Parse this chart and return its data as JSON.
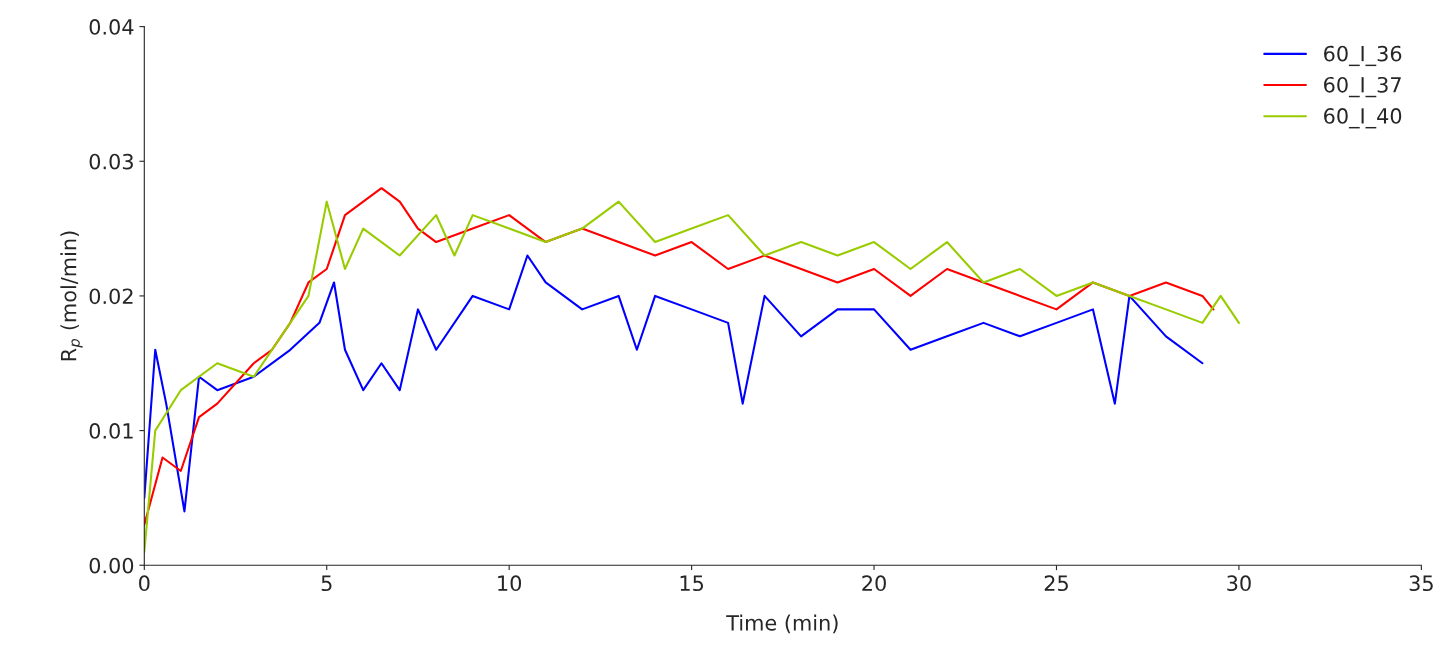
{
  "chart_data": {
    "type": "line",
    "xlabel": "Time (min)",
    "ylabel": "R$_{p}$ (mol/min)",
    "xlim": [
      0,
      35
    ],
    "xticks": [
      0,
      5,
      10,
      15,
      20,
      25,
      30,
      35
    ],
    "ylim": [
      0,
      0.04
    ],
    "yticks": [
      {
        "value": 0,
        "label": "0.00"
      },
      {
        "value": 0.01,
        "label": "0.01"
      },
      {
        "value": 0.02,
        "label": "0.02"
      },
      {
        "value": 0.03,
        "label": "0.03"
      },
      {
        "value": 0.04,
        "label": "0.04"
      }
    ],
    "grid": false,
    "legend": "top right",
    "marker": "none",
    "line_style": "solid",
    "series": [
      {
        "name": "60_I_36",
        "color": "#0000ff",
        "x": [
          0,
          0.3,
          0.6,
          1.1,
          1.5,
          2,
          3,
          4,
          4.8,
          5.2,
          5.5,
          6,
          6.5,
          7,
          7.5,
          8,
          9,
          10,
          10.5,
          11,
          12,
          13,
          13.5,
          14,
          15,
          16,
          16.4,
          17,
          18,
          19,
          20,
          21,
          22,
          23,
          24,
          25,
          26,
          26.6,
          27,
          28,
          29
        ],
        "values": [
          0.005,
          0.016,
          0.012,
          0.004,
          0.014,
          0.013,
          0.014,
          0.016,
          0.018,
          0.021,
          0.016,
          0.013,
          0.015,
          0.013,
          0.019,
          0.016,
          0.02,
          0.019,
          0.023,
          0.021,
          0.019,
          0.02,
          0.016,
          0.02,
          0.019,
          0.018,
          0.012,
          0.02,
          0.017,
          0.019,
          0.019,
          0.016,
          0.017,
          0.018,
          0.017,
          0.018,
          0.019,
          0.012,
          0.02,
          0.017,
          0.015
        ]
      },
      {
        "name": "60_I_37",
        "color": "#ff0000",
        "x": [
          0,
          0.5,
          1,
          1.5,
          2,
          3,
          3.5,
          4,
          4.5,
          5,
          5.5,
          6,
          6.5,
          7,
          7.5,
          8,
          9,
          10,
          11,
          12,
          13,
          14,
          15,
          16,
          17,
          18,
          19,
          20,
          21,
          22,
          23,
          24,
          25,
          26,
          27,
          28,
          29,
          29.3
        ],
        "values": [
          0.003,
          0.008,
          0.007,
          0.011,
          0.012,
          0.015,
          0.016,
          0.018,
          0.021,
          0.022,
          0.026,
          0.027,
          0.028,
          0.027,
          0.025,
          0.024,
          0.025,
          0.026,
          0.024,
          0.025,
          0.024,
          0.023,
          0.024,
          0.022,
          0.023,
          0.022,
          0.021,
          0.022,
          0.02,
          0.022,
          0.021,
          0.02,
          0.019,
          0.021,
          0.02,
          0.021,
          0.02,
          0.019
        ]
      },
      {
        "name": "60_I_40",
        "color": "#99cc00",
        "x": [
          0,
          0.3,
          1,
          2,
          3,
          4,
          4.5,
          5,
          5.5,
          6,
          7,
          8,
          8.5,
          9,
          10,
          11,
          12,
          13,
          14,
          15,
          16,
          17,
          18,
          19,
          20,
          21,
          22,
          23,
          24,
          25,
          26,
          27,
          28,
          29,
          29.5,
          30
        ],
        "values": [
          0.001,
          0.01,
          0.013,
          0.015,
          0.014,
          0.018,
          0.02,
          0.027,
          0.022,
          0.025,
          0.023,
          0.026,
          0.023,
          0.026,
          0.025,
          0.024,
          0.025,
          0.027,
          0.024,
          0.025,
          0.026,
          0.023,
          0.024,
          0.023,
          0.024,
          0.022,
          0.024,
          0.021,
          0.022,
          0.02,
          0.021,
          0.02,
          0.019,
          0.018,
          0.02,
          0.018
        ]
      }
    ]
  }
}
